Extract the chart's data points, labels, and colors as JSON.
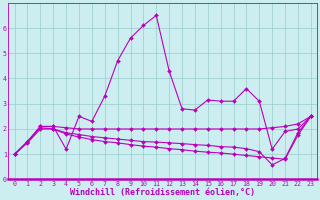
{
  "xlabel": "Windchill (Refroidissement éolien,°C)",
  "x": [
    0,
    1,
    2,
    3,
    4,
    5,
    6,
    7,
    8,
    9,
    10,
    11,
    12,
    13,
    14,
    15,
    16,
    17,
    18,
    19,
    20,
    21,
    22,
    23
  ],
  "line1": [
    1.0,
    1.5,
    2.1,
    2.1,
    1.2,
    2.5,
    2.3,
    3.3,
    4.7,
    5.6,
    6.1,
    6.5,
    4.3,
    2.8,
    2.75,
    3.15,
    3.1,
    3.1,
    3.6,
    3.1,
    1.2,
    1.9,
    2.0,
    2.5
  ],
  "line2": [
    1.0,
    1.5,
    2.1,
    2.1,
    2.05,
    2.0,
    2.0,
    2.0,
    2.0,
    2.0,
    2.0,
    2.0,
    2.0,
    2.0,
    2.0,
    2.0,
    2.0,
    2.0,
    2.0,
    2.0,
    2.05,
    2.1,
    2.2,
    2.5
  ],
  "line3": [
    1.0,
    1.5,
    2.05,
    2.0,
    1.85,
    1.78,
    1.7,
    1.65,
    1.6,
    1.55,
    1.5,
    1.48,
    1.45,
    1.42,
    1.38,
    1.35,
    1.3,
    1.28,
    1.22,
    1.1,
    0.58,
    0.83,
    1.85,
    2.5
  ],
  "line4": [
    1.0,
    1.45,
    2.0,
    2.0,
    1.8,
    1.68,
    1.58,
    1.5,
    1.45,
    1.38,
    1.32,
    1.28,
    1.22,
    1.18,
    1.12,
    1.08,
    1.05,
    1.0,
    0.95,
    0.9,
    0.85,
    0.8,
    1.75,
    2.5
  ],
  "line_color": "#bb00bb",
  "bg_color": "#cceef0",
  "grid_color": "#99cccc",
  "ylim": [
    0,
    7
  ],
  "xlim": [
    -0.5,
    23.5
  ],
  "yticks": [
    0,
    1,
    2,
    3,
    4,
    5,
    6
  ],
  "xticks": [
    0,
    1,
    2,
    3,
    4,
    5,
    6,
    7,
    8,
    9,
    10,
    11,
    12,
    13,
    14,
    15,
    16,
    17,
    18,
    19,
    20,
    21,
    22,
    23
  ],
  "tick_fontsize": 4.8,
  "xlabel_fontsize": 6.0,
  "markersize": 2.0,
  "linewidth": 0.8
}
